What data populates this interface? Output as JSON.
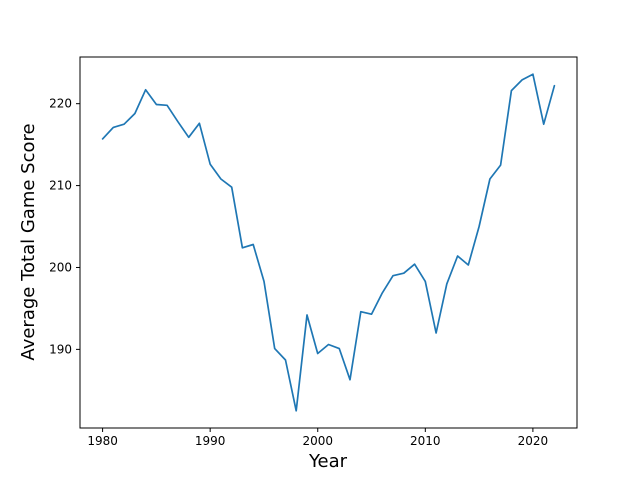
{
  "figure": {
    "xlabel": "Year",
    "ylabel": "Average Total Game Score"
  },
  "chart_data": {
    "type": "line",
    "title": "",
    "xlabel": "Year",
    "ylabel": "Average Total Game Score",
    "grid": false,
    "legend": false,
    "background_color": "#ffffff",
    "line_color": "#1f77b4",
    "spine_color": "#000000",
    "xlim": [
      1977.9,
      2024.1
    ],
    "ylim": [
      180.4,
      225.7
    ],
    "xticks": [
      1980,
      1990,
      2000,
      2010,
      2020
    ],
    "yticks": [
      190,
      200,
      210,
      220
    ],
    "x": [
      1980,
      1981,
      1982,
      1983,
      1984,
      1985,
      1986,
      1987,
      1988,
      1989,
      1990,
      1991,
      1992,
      1993,
      1994,
      1995,
      1996,
      1997,
      1998,
      1999,
      2000,
      2001,
      2002,
      2003,
      2004,
      2005,
      2006,
      2007,
      2008,
      2009,
      2010,
      2011,
      2012,
      2013,
      2014,
      2015,
      2016,
      2017,
      2018,
      2019,
      2020,
      2021,
      2022
    ],
    "values": [
      215.7,
      217.1,
      217.5,
      218.8,
      221.7,
      219.9,
      219.8,
      217.8,
      215.9,
      217.6,
      212.6,
      210.8,
      209.8,
      202.4,
      202.8,
      198.3,
      190.1,
      188.7,
      182.5,
      194.2,
      189.5,
      190.6,
      190.1,
      186.3,
      194.6,
      194.3,
      196.9,
      199.0,
      199.3,
      200.4,
      198.3,
      192.0,
      198.0,
      201.4,
      200.3,
      205.0,
      210.8,
      212.5,
      221.6,
      222.9,
      223.6,
      217.5,
      222.2
    ]
  }
}
